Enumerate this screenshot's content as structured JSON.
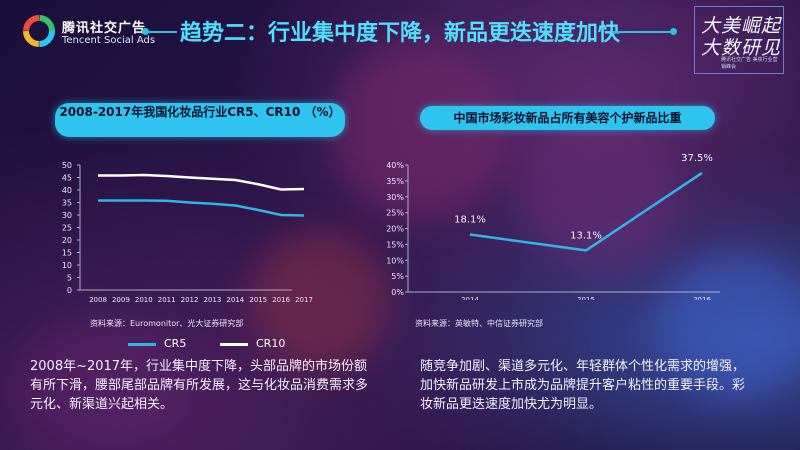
{
  "brand_colors": {
    "accent": "#4fe0ff",
    "title_bar": "#2ec4ef",
    "cr5": "#2fb5e8",
    "cr10": "#ffffff",
    "share_line": "#2fb5e8"
  },
  "logo": {
    "cn": "腾讯社交广告",
    "en": "Tencent Social Ads"
  },
  "header": {
    "title": "趋势二：行业集中度下降，新品更迭速度加快"
  },
  "brand_badge": {
    "line1": "大美崛起",
    "line2": "大数研见",
    "sub": "腾讯社交广告 美妆行业营销峰会"
  },
  "left": {
    "title": "2008-2017年我国化妆品行业CR5、CR10 （%）",
    "source": "资料来源：Euromonitor、光大证券研究部",
    "paragraph": "2008年~2017年，行业集中度下降，头部品牌的市场份额有所下滑，腰部尾部品牌有所发展，这与化妆品消费需求多元化、新渠道兴起相关。"
  },
  "right": {
    "title": "中国市场彩妆新品占所有美容个护新品比重",
    "source": "资料来源：英敏特、中信证券研究部",
    "paragraph": "随竞争加剧、渠道多元化、年轻群体个性化需求的增强，加快新品研发上市成为品牌提升客户粘性的重要手段。彩妆新品更迭速度加快尤为明显。"
  },
  "chart_data": [
    {
      "type": "line",
      "title": "2008-2017年我国化妆品行业CR5、CR10 （%）",
      "x": [
        "2008",
        "2009",
        "2010",
        "2011",
        "2012",
        "2013",
        "2014",
        "2015",
        "2016",
        "2017"
      ],
      "ylim": [
        0,
        50
      ],
      "yticks": [
        0,
        5,
        10,
        15,
        20,
        25,
        30,
        35,
        40,
        45,
        50
      ],
      "grid": false,
      "legend": "bottom",
      "series": [
        {
          "name": "CR5",
          "color": "#2fb5e8",
          "values": [
            35.8,
            35.8,
            35.8,
            35.7,
            35.0,
            34.5,
            33.8,
            32.0,
            30.0,
            29.8
          ]
        },
        {
          "name": "CR10",
          "color": "#ffffff",
          "values": [
            45.8,
            45.8,
            46.0,
            45.6,
            45.0,
            44.5,
            44.0,
            42.3,
            40.2,
            40.4
          ]
        }
      ]
    },
    {
      "type": "line",
      "title": "中国市场彩妆新品占所有美容个护新品比重",
      "x": [
        "2014",
        "2015",
        "2016"
      ],
      "ylim": [
        0,
        40
      ],
      "yticks": [
        "0%",
        "5%",
        "10%",
        "15%",
        "20%",
        "25%",
        "30%",
        "35%",
        "40%"
      ],
      "grid": false,
      "series": [
        {
          "color": "#2fb5e8",
          "values": [
            18.1,
            13.1,
            37.5
          ],
          "labels": [
            "18.1%",
            "13.1%",
            "37.5%"
          ]
        }
      ]
    }
  ]
}
